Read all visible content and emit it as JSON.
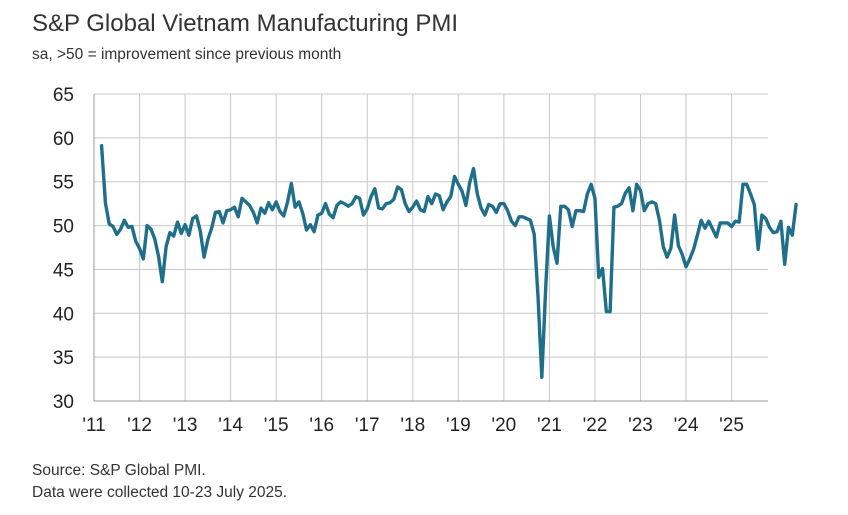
{
  "chart_data": {
    "type": "line",
    "title": "S&P Global Vietnam Manufacturing PMI",
    "subtitle": "sa, >50 = improvement since previous month",
    "ylim": [
      30,
      65
    ],
    "yticks": [
      30,
      35,
      40,
      45,
      50,
      55,
      60,
      65
    ],
    "xlim": [
      2011.0,
      2025.8
    ],
    "xticks": [
      {
        "x": 2011,
        "label": "'11"
      },
      {
        "x": 2012,
        "label": "'12"
      },
      {
        "x": 2013,
        "label": "'13"
      },
      {
        "x": 2014,
        "label": "'14"
      },
      {
        "x": 2015,
        "label": "'15"
      },
      {
        "x": 2016,
        "label": "'16"
      },
      {
        "x": 2017,
        "label": "'17"
      },
      {
        "x": 2018,
        "label": "'18"
      },
      {
        "x": 2019,
        "label": "'19"
      },
      {
        "x": 2020,
        "label": "'20"
      },
      {
        "x": 2021,
        "label": "'21"
      },
      {
        "x": 2022,
        "label": "'22"
      },
      {
        "x": 2023,
        "label": "'23"
      },
      {
        "x": 2024,
        "label": "'24"
      },
      {
        "x": 2025,
        "label": "'25"
      }
    ],
    "grid": true,
    "series": [
      {
        "name": "Vietnam Manufacturing PMI",
        "color": "#1f6f8b",
        "start": [
          2011,
          3
        ],
        "values": [
          59.1,
          52.6,
          50.2,
          49.9,
          49.0,
          49.6,
          50.6,
          49.8,
          49.9,
          48.2,
          47.4,
          46.2,
          50.0,
          49.6,
          48.5,
          46.5,
          43.6,
          47.6,
          49.2,
          48.8,
          50.4,
          49.1,
          50.1,
          48.9,
          50.8,
          51.1,
          49.4,
          46.4,
          48.4,
          49.7,
          51.5,
          51.6,
          50.3,
          51.7,
          51.8,
          52.1,
          51.0,
          53.1,
          52.7,
          52.3,
          51.5,
          50.3,
          52.0,
          51.4,
          52.6,
          51.8,
          52.7,
          51.6,
          51.1,
          52.7,
          54.8,
          52.1,
          52.7,
          51.4,
          49.5,
          50.1,
          49.3,
          51.2,
          51.4,
          52.5,
          51.3,
          50.9,
          52.3,
          52.7,
          52.5,
          52.2,
          52.5,
          53.3,
          53.1,
          51.2,
          51.9,
          53.3,
          54.2,
          52.0,
          51.9,
          52.5,
          52.6,
          53.0,
          54.4,
          54.1,
          52.5,
          51.6,
          52.1,
          52.8,
          51.8,
          51.6,
          53.3,
          52.5,
          53.6,
          53.4,
          51.8,
          52.7,
          53.3,
          55.6,
          54.7,
          53.9,
          52.3,
          54.9,
          56.5,
          53.6,
          52.0,
          51.2,
          52.4,
          52.2,
          51.5,
          52.5,
          52.5,
          51.7,
          50.5,
          50.0,
          51.0,
          51.0,
          50.8,
          50.6,
          49.0,
          41.9,
          32.7,
          42.7,
          51.1,
          47.6,
          45.7,
          52.2,
          52.2,
          51.8,
          49.9,
          51.7,
          51.7,
          51.6,
          53.6,
          54.7,
          53.1,
          44.1,
          45.1,
          40.2,
          40.2,
          52.1,
          52.2,
          52.5,
          53.7,
          54.3,
          51.7,
          54.7,
          54.0,
          51.7,
          52.5,
          52.7,
          52.5,
          50.6,
          47.6,
          46.4,
          47.4,
          51.2,
          47.7,
          46.7,
          45.3,
          46.2,
          47.3,
          48.9,
          50.6,
          49.7,
          50.5,
          49.6,
          48.7,
          50.3,
          50.3,
          50.3,
          49.9,
          50.5,
          50.4,
          54.7,
          54.7,
          53.6,
          52.4,
          47.3,
          51.2,
          50.8,
          49.8,
          49.2,
          49.3,
          50.5,
          45.6,
          49.8,
          48.9,
          52.4
        ]
      }
    ],
    "footer": {
      "source": "Source: S&P Global PMI.",
      "note": "Data were collected 10-23 July 2025."
    }
  }
}
